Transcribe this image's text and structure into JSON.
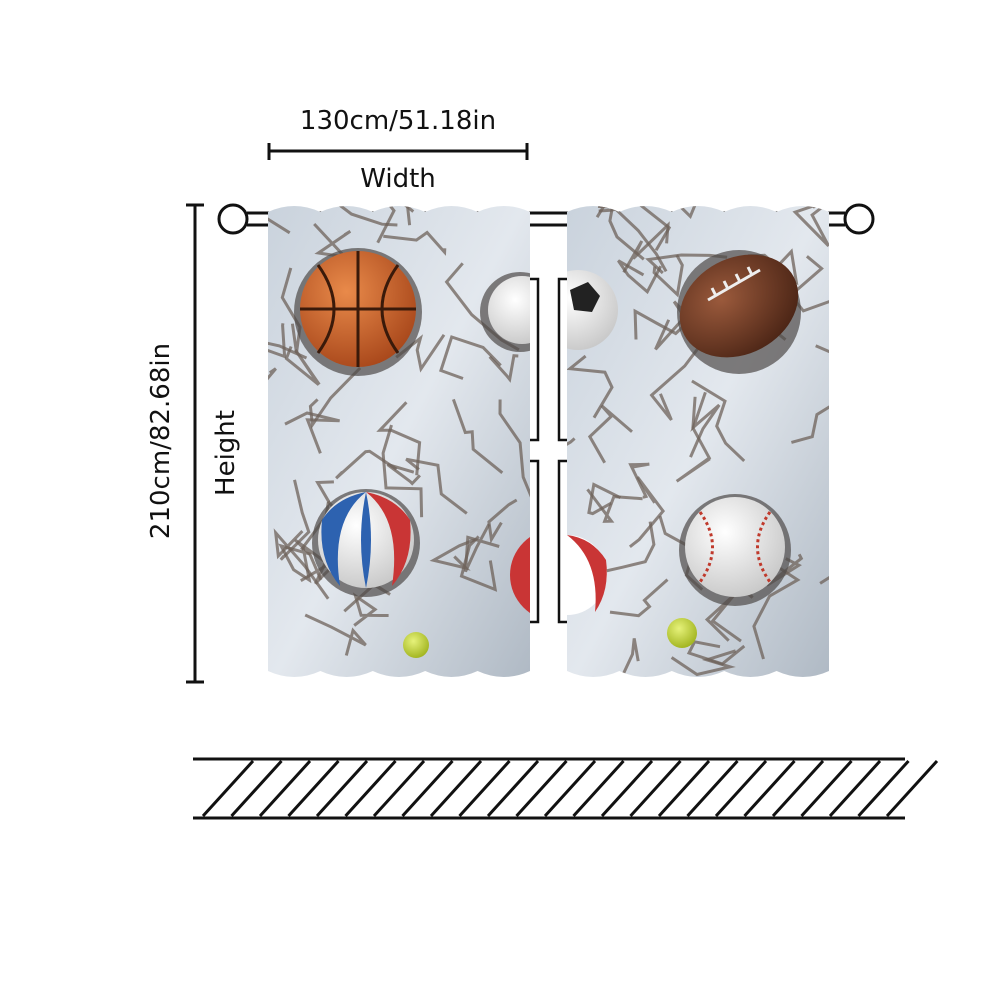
{
  "width": {
    "measurement": "130cm/51.18in",
    "label": "Width"
  },
  "height": {
    "measurement": "210cm/82.68in",
    "label": "Height"
  }
}
